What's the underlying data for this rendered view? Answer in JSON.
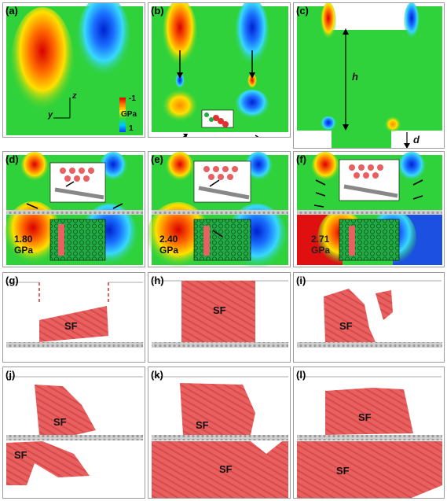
{
  "panels": {
    "a": {
      "label": "(a)",
      "colorbar_min": "-1",
      "colorbar_unit": "GPa",
      "colorbar_max": "1",
      "axis_z": "z",
      "axis_y": "y"
    },
    "b": {
      "label": "(b)"
    },
    "c": {
      "label": "(c)",
      "dim_h": "h",
      "dim_d": "d"
    },
    "d": {
      "label": "(d)",
      "stress_value": "1.80",
      "stress_unit": "GPa"
    },
    "e": {
      "label": "(e)",
      "stress_value": "2.40",
      "stress_unit": "GPa"
    },
    "f": {
      "label": "(f)",
      "stress_value": "2.71",
      "stress_unit": "GPa"
    },
    "g": {
      "label": "(g)",
      "sf": "SF"
    },
    "h": {
      "label": "(h)",
      "sf": "SF"
    },
    "i": {
      "label": "(i)",
      "sf": "SF"
    },
    "j": {
      "label": "(j)",
      "sf_top": "SF",
      "sf_bottom": "SF"
    },
    "k": {
      "label": "(k)",
      "sf_top": "SF",
      "sf_bottom": "SF"
    },
    "l": {
      "label": "(l)",
      "sf_top": "SF",
      "sf_bottom": "SF"
    }
  },
  "colors": {
    "field_green": "#2fd23a",
    "stacking_fault": "#e8605f",
    "tension_red": "#e01010",
    "compression_blue": "#1c50e0"
  }
}
